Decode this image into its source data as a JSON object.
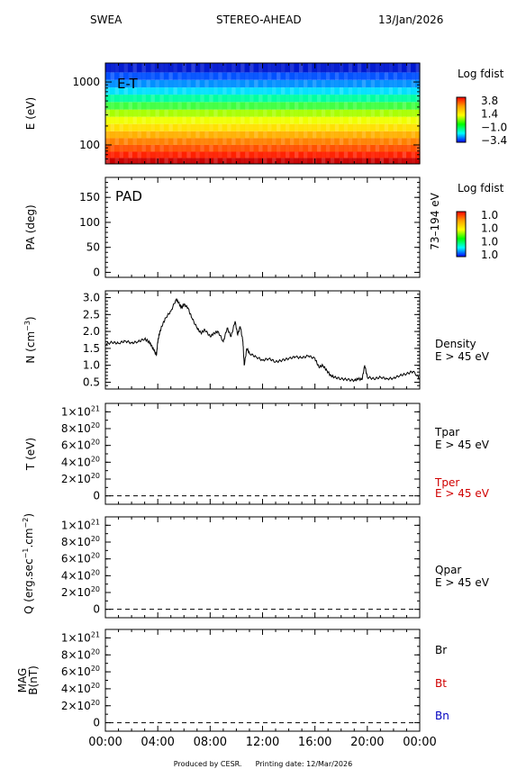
{
  "header": {
    "instrument": "SWEA",
    "spacecraft": "STEREO-AHEAD",
    "date": "13/Jan/2026"
  },
  "footer": {
    "produced": "Produced by CESR.",
    "printing": "Printing date: 12/Mar/2026"
  },
  "colors": {
    "black": "#000000",
    "red": "#d00000",
    "blue": "#0000c0"
  },
  "chart_data": [
    {
      "type": "heatmap",
      "name": "energy-time",
      "label": "E-T",
      "ylabel": "E (eV)",
      "yscale": "log",
      "ylim": [
        50,
        2000
      ],
      "yticks": [
        {
          "value": 100,
          "label": "100"
        },
        {
          "value": 1000,
          "label": "1000"
        }
      ],
      "colorbar": {
        "title": "Log fdist",
        "tick_labels": [
          "3.8",
          "1.4",
          "−1.0",
          "−3.4"
        ]
      },
      "energy_bands": [
        {
          "e_low": 50,
          "e_high": 62,
          "color": "#c80000"
        },
        {
          "e_low": 62,
          "e_high": 78,
          "color": "#ff2000"
        },
        {
          "e_low": 78,
          "e_high": 100,
          "color": "#ff5000"
        },
        {
          "e_low": 100,
          "e_high": 128,
          "color": "#ff8000"
        },
        {
          "e_low": 128,
          "e_high": 165,
          "color": "#ffb000"
        },
        {
          "e_low": 165,
          "e_high": 215,
          "color": "#ffe000"
        },
        {
          "e_low": 215,
          "e_high": 280,
          "color": "#f0ff00"
        },
        {
          "e_low": 280,
          "e_high": 365,
          "color": "#a8ff00"
        },
        {
          "e_low": 365,
          "e_high": 480,
          "color": "#40ff40"
        },
        {
          "e_low": 480,
          "e_high": 630,
          "color": "#00ffa0"
        },
        {
          "e_low": 630,
          "e_high": 820,
          "color": "#00e0ff"
        },
        {
          "e_low": 820,
          "e_high": 1080,
          "color": "#0090ff"
        },
        {
          "e_low": 1080,
          "e_high": 1420,
          "color": "#0050ff"
        },
        {
          "e_low": 1420,
          "e_high": 2000,
          "color": "#0018d0"
        }
      ]
    },
    {
      "type": "heatmap",
      "name": "pitch-angle",
      "label": "PAD",
      "ylabel": "PA (deg)",
      "ylim": [
        -10,
        190
      ],
      "yticks": [
        {
          "value": 0,
          "label": "0"
        },
        {
          "value": 50,
          "label": "50"
        },
        {
          "value": 100,
          "label": "100"
        },
        {
          "value": 150,
          "label": "150"
        }
      ],
      "energy_range_label": "73–194 eV",
      "colorbar": {
        "title": "Log fdist",
        "tick_labels": [
          "1.0",
          "1.0",
          "1.0",
          "1.0"
        ]
      }
    },
    {
      "type": "line",
      "name": "density",
      "ylabel_main": "N (cm",
      "ylabel_sup": "−3",
      "ylabel_end": ")",
      "ylim": [
        0.3,
        3.2
      ],
      "yticks": [
        {
          "value": 0.5,
          "label": "0.5"
        },
        {
          "value": 1.0,
          "label": "1.0"
        },
        {
          "value": 1.5,
          "label": "1.5"
        },
        {
          "value": 2.0,
          "label": "2.0"
        },
        {
          "value": 2.5,
          "label": "2.5"
        },
        {
          "value": 3.0,
          "label": "3.0"
        }
      ],
      "legend": [
        "Density",
        "E > 45 eV"
      ],
      "series": [
        {
          "name": "Density",
          "x": [
            0,
            0.5,
            1,
            1.5,
            2,
            2.5,
            3,
            3.3,
            3.5,
            3.7,
            3.9,
            4.0,
            4.1,
            4.3,
            4.6,
            5.0,
            5.4,
            5.6,
            5.8,
            6.0,
            6.3,
            6.6,
            7.0,
            7.3,
            7.6,
            8.0,
            8.3,
            8.6,
            9.0,
            9.3,
            9.6,
            9.9,
            10.1,
            10.3,
            10.5,
            10.6,
            10.8,
            11.0,
            11.5,
            12.0,
            12.5,
            13.0,
            13.5,
            14.0,
            14.5,
            15.0,
            15.5,
            16.0,
            16.3,
            16.6,
            16.9,
            17.2,
            17.5,
            18.0,
            18.5,
            19.0,
            19.3,
            19.6,
            19.8,
            20.0,
            20.5,
            21.0,
            21.5,
            22.0,
            22.5,
            23.0,
            23.5,
            24.0
          ],
          "y": [
            1.62,
            1.68,
            1.65,
            1.72,
            1.66,
            1.7,
            1.78,
            1.7,
            1.6,
            1.45,
            1.3,
            1.7,
            1.9,
            2.15,
            2.4,
            2.6,
            2.95,
            2.85,
            2.7,
            2.8,
            2.7,
            2.4,
            2.1,
            1.95,
            2.05,
            1.85,
            1.95,
            2.0,
            1.7,
            2.1,
            1.85,
            2.3,
            1.9,
            2.15,
            1.7,
            1.0,
            1.5,
            1.35,
            1.25,
            1.15,
            1.2,
            1.1,
            1.15,
            1.2,
            1.25,
            1.22,
            1.28,
            1.2,
            0.95,
            1.0,
            0.85,
            0.7,
            0.65,
            0.6,
            0.58,
            0.55,
            0.6,
            0.58,
            1.0,
            0.65,
            0.6,
            0.65,
            0.6,
            0.62,
            0.7,
            0.75,
            0.82,
            0.6
          ]
        }
      ]
    },
    {
      "type": "line",
      "name": "temperature",
      "ylabel": "T (eV)",
      "ylim": [
        -0.1,
        1.1
      ],
      "yticks": [
        {
          "value": 0,
          "label": "0",
          "exp": ""
        },
        {
          "value": 0.2,
          "label": "2×10",
          "exp": "20"
        },
        {
          "value": 0.4,
          "label": "4×10",
          "exp": "20"
        },
        {
          "value": 0.6,
          "label": "6×10",
          "exp": "20"
        },
        {
          "value": 0.8,
          "label": "8×10",
          "exp": "20"
        },
        {
          "value": 1.0,
          "label": "1×10",
          "exp": "21"
        }
      ],
      "legend": [
        {
          "text": "Tpar",
          "color": "#000000"
        },
        {
          "text": "E > 45 eV",
          "color": "#000000"
        },
        {
          "text": "Tper",
          "color": "#d00000"
        },
        {
          "text": "E > 45 eV",
          "color": "#d00000"
        }
      ],
      "series": [
        {
          "name": "Tpar",
          "x": [
            0,
            24
          ],
          "y": [
            0,
            0
          ],
          "style": "dashed"
        }
      ]
    },
    {
      "type": "line",
      "name": "heat-flux",
      "ylabel_main": "Q (erg.sec",
      "ylabel_sup1": "−1",
      "ylabel_mid": ".cm",
      "ylabel_sup2": "−2",
      "ylabel_end": ")",
      "ylim": [
        -0.1,
        1.1
      ],
      "yticks": [
        {
          "value": 0,
          "label": "0",
          "exp": ""
        },
        {
          "value": 0.2,
          "label": "2×10",
          "exp": "20"
        },
        {
          "value": 0.4,
          "label": "4×10",
          "exp": "20"
        },
        {
          "value": 0.6,
          "label": "6×10",
          "exp": "20"
        },
        {
          "value": 0.8,
          "label": "8×10",
          "exp": "20"
        },
        {
          "value": 1.0,
          "label": "1×10",
          "exp": "21"
        }
      ],
      "legend": [
        {
          "text": "Qpar",
          "color": "#000000"
        },
        {
          "text": "E > 45 eV",
          "color": "#000000"
        }
      ],
      "series": [
        {
          "name": "Qpar",
          "x": [
            0,
            24
          ],
          "y": [
            0,
            0
          ],
          "style": "dashed"
        }
      ]
    },
    {
      "type": "line",
      "name": "magnetic-field",
      "ylabel_top": "MAG",
      "ylabel_bottom": "B(nT)",
      "ylim": [
        -0.1,
        1.1
      ],
      "yticks": [
        {
          "value": 0,
          "label": "0",
          "exp": ""
        },
        {
          "value": 0.2,
          "label": "2×10",
          "exp": "20"
        },
        {
          "value": 0.4,
          "label": "4×10",
          "exp": "20"
        },
        {
          "value": 0.6,
          "label": "6×10",
          "exp": "20"
        },
        {
          "value": 0.8,
          "label": "8×10",
          "exp": "20"
        },
        {
          "value": 1.0,
          "label": "1×10",
          "exp": "21"
        }
      ],
      "legend": [
        {
          "text": "Br",
          "color": "#000000"
        },
        {
          "text": "Bt",
          "color": "#d00000"
        },
        {
          "text": "Bn",
          "color": "#0000c0"
        }
      ],
      "series": [
        {
          "name": "Br",
          "x": [
            0,
            24
          ],
          "y": [
            0,
            0
          ],
          "style": "dashed"
        }
      ],
      "xlim": [
        0,
        24
      ],
      "xticks": [
        {
          "value": 0,
          "label": "00:00"
        },
        {
          "value": 4,
          "label": "04:00"
        },
        {
          "value": 8,
          "label": "08:00"
        },
        {
          "value": 12,
          "label": "12:00"
        },
        {
          "value": 16,
          "label": "16:00"
        },
        {
          "value": 20,
          "label": "20:00"
        },
        {
          "value": 24,
          "label": "00:00"
        }
      ]
    }
  ]
}
